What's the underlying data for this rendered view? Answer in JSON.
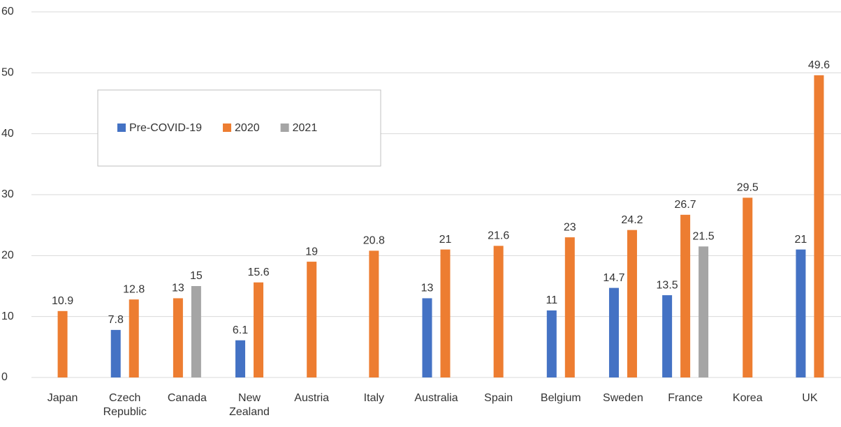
{
  "chart_data": {
    "type": "bar",
    "categories": [
      "Japan",
      "Czech Republic",
      "Canada",
      "New Zealand",
      "Austria",
      "Italy",
      "Australia",
      "Spain",
      "Belgium",
      "Sweden",
      "France",
      "Korea",
      "UK"
    ],
    "series": [
      {
        "name": "Pre-COVID-19",
        "color": "#4472c4",
        "values": [
          null,
          7.8,
          null,
          6.1,
          null,
          null,
          13,
          null,
          11,
          14.7,
          13.5,
          null,
          21
        ]
      },
      {
        "name": "2020",
        "color": "#ed7d31",
        "values": [
          10.9,
          12.8,
          13,
          15.6,
          19,
          20.8,
          21,
          21.6,
          23,
          24.2,
          26.7,
          29.5,
          49.6
        ]
      },
      {
        "name": "2021",
        "color": "#a5a5a5",
        "values": [
          null,
          null,
          15,
          null,
          null,
          null,
          null,
          null,
          null,
          null,
          21.5,
          null,
          null
        ]
      }
    ],
    "ylim": [
      0,
      60
    ],
    "yticks": [
      0,
      10,
      20,
      30,
      40,
      50,
      60
    ],
    "grid": true,
    "legend": "upper left"
  }
}
